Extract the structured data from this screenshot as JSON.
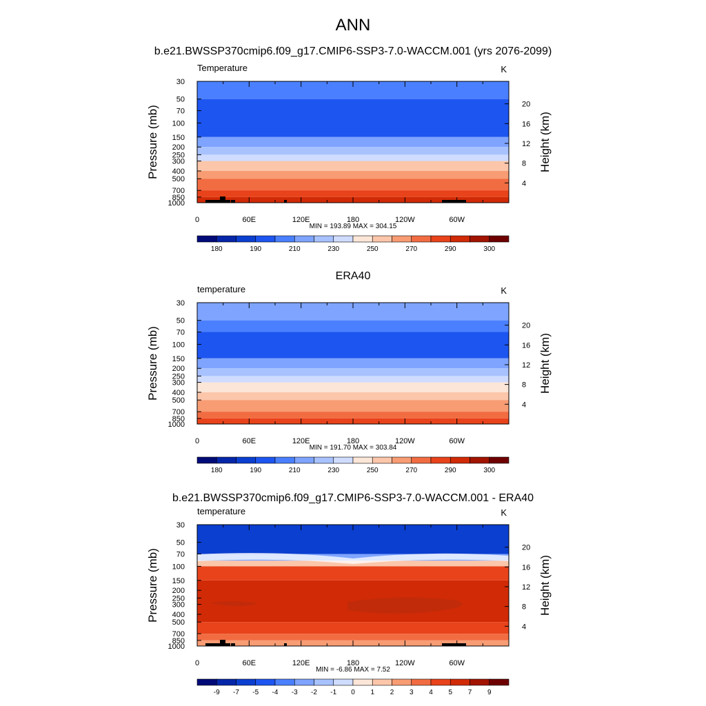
{
  "page": {
    "title": "ANN"
  },
  "palettes": {
    "temperature": [
      "#000b78",
      "#0526a8",
      "#0b3fd0",
      "#1d55f0",
      "#4a80ff",
      "#7ea4ff",
      "#a8c2ff",
      "#cfdcff",
      "#fbe6d8",
      "#fbc6aa",
      "#f89c73",
      "#f26c42",
      "#e8431b",
      "#d12a06",
      "#a21400",
      "#6e0000"
    ],
    "difference": [
      "#000b78",
      "#0526a8",
      "#0b3fd0",
      "#1d55f0",
      "#4a80ff",
      "#7ea4ff",
      "#a8c2ff",
      "#cfdcff",
      "#fbe6d8",
      "#fbc6aa",
      "#f89c73",
      "#f26c42",
      "#e8431b",
      "#d12a06",
      "#a21400",
      "#6e0000"
    ]
  },
  "chart_data": [
    {
      "type": "heatmap",
      "title": "b.e21.BWSSP370cmip6.f09_g17.CMIP6-SSP3-7.0-WACCM.001 (yrs 2076-2099)",
      "left_label": "Temperature",
      "units": "K",
      "ylabel": "Pressure (mb)",
      "y2label": "Height (km)",
      "x_ticks": [
        "0",
        "60E",
        "120E",
        "180",
        "120W",
        "60W"
      ],
      "y_ticks": [
        "30",
        "50",
        "70",
        "100",
        "150",
        "200",
        "250",
        "300",
        "400",
        "500",
        "700",
        "850",
        "1000"
      ],
      "y2_ticks": [
        "20",
        "16",
        "12",
        "8",
        "4"
      ],
      "stats": "MIN = 193.89  MAX = 304.15",
      "colorbar_labels": [
        "180",
        "190",
        "210",
        "230",
        "250",
        "270",
        "290",
        "300"
      ],
      "palette": "temperature",
      "level_bands": [
        {
          "from": "30",
          "to": "50",
          "color_index": 4
        },
        {
          "from": "50",
          "to": "150",
          "color_index": 3
        },
        {
          "from": "150",
          "to": "200",
          "color_index": 5
        },
        {
          "from": "200",
          "to": "250",
          "color_index": 6
        },
        {
          "from": "250",
          "to": "300",
          "color_index": 7
        },
        {
          "from": "300",
          "to": "400",
          "color_index": 9
        },
        {
          "from": "400",
          "to": "500",
          "color_index": 10
        },
        {
          "from": "500",
          "to": "700",
          "color_index": 11
        },
        {
          "from": "700",
          "to": "850",
          "color_index": 12
        },
        {
          "from": "850",
          "to": "1000",
          "color_index": 13
        }
      ],
      "terrain": true
    },
    {
      "type": "heatmap",
      "title": "ERA40",
      "left_label": "temperature",
      "units": "K",
      "ylabel": "Pressure (mb)",
      "y2label": "Height (km)",
      "x_ticks": [
        "0",
        "60E",
        "120E",
        "180",
        "120W",
        "60W"
      ],
      "y_ticks": [
        "30",
        "50",
        "70",
        "100",
        "150",
        "200",
        "250",
        "300",
        "400",
        "500",
        "700",
        "850",
        "1000"
      ],
      "y2_ticks": [
        "20",
        "16",
        "12",
        "8",
        "4"
      ],
      "stats": "MIN = 191.70  MAX = 303.84",
      "colorbar_labels": [
        "180",
        "190",
        "210",
        "230",
        "250",
        "270",
        "290",
        "300"
      ],
      "palette": "temperature",
      "level_bands": [
        {
          "from": "30",
          "to": "50",
          "color_index": 5
        },
        {
          "from": "50",
          "to": "70",
          "color_index": 4
        },
        {
          "from": "70",
          "to": "150",
          "color_index": 3
        },
        {
          "from": "150",
          "to": "200",
          "color_index": 5
        },
        {
          "from": "200",
          "to": "250",
          "color_index": 6
        },
        {
          "from": "250",
          "to": "300",
          "color_index": 7
        },
        {
          "from": "300",
          "to": "400",
          "color_index": 8
        },
        {
          "from": "400",
          "to": "500",
          "color_index": 9
        },
        {
          "from": "500",
          "to": "700",
          "color_index": 10
        },
        {
          "from": "700",
          "to": "850",
          "color_index": 11
        },
        {
          "from": "850",
          "to": "1000",
          "color_index": 12
        }
      ],
      "terrain": false
    },
    {
      "type": "heatmap",
      "title": "b.e21.BWSSP370cmip6.f09_g17.CMIP6-SSP3-7.0-WACCM.001 - ERA40",
      "left_label": "temperature",
      "units": "K",
      "ylabel": "Pressure (mb)",
      "y2label": "Height (km)",
      "x_ticks": [
        "0",
        "60E",
        "120E",
        "180",
        "120W",
        "60W"
      ],
      "y_ticks": [
        "30",
        "50",
        "70",
        "100",
        "150",
        "200",
        "250",
        "300",
        "400",
        "500",
        "700",
        "850",
        "1000"
      ],
      "y2_ticks": [
        "20",
        "16",
        "12",
        "8",
        "4"
      ],
      "stats": "MIN =  -6.86  MAX =   7.52",
      "colorbar_labels": [
        "-9",
        "-7",
        "-5",
        "-4",
        "-3",
        "-2",
        "-1",
        "0",
        "1",
        "2",
        "3",
        "4",
        "5",
        "7",
        "9"
      ],
      "palette": "difference",
      "level_bands": [
        {
          "from": "30",
          "to": "70",
          "color_index": 2
        },
        {
          "from": "70",
          "to": "85",
          "color_index": 5
        },
        {
          "from": "85",
          "to": "100",
          "color_index": 9
        },
        {
          "from": "100",
          "to": "150",
          "color_index": 12
        },
        {
          "from": "150",
          "to": "500",
          "color_index": 13
        },
        {
          "from": "500",
          "to": "700",
          "color_index": 12
        },
        {
          "from": "700",
          "to": "850",
          "color_index": 11
        },
        {
          "from": "850",
          "to": "1000",
          "color_index": 10
        }
      ],
      "terrain": true
    }
  ]
}
